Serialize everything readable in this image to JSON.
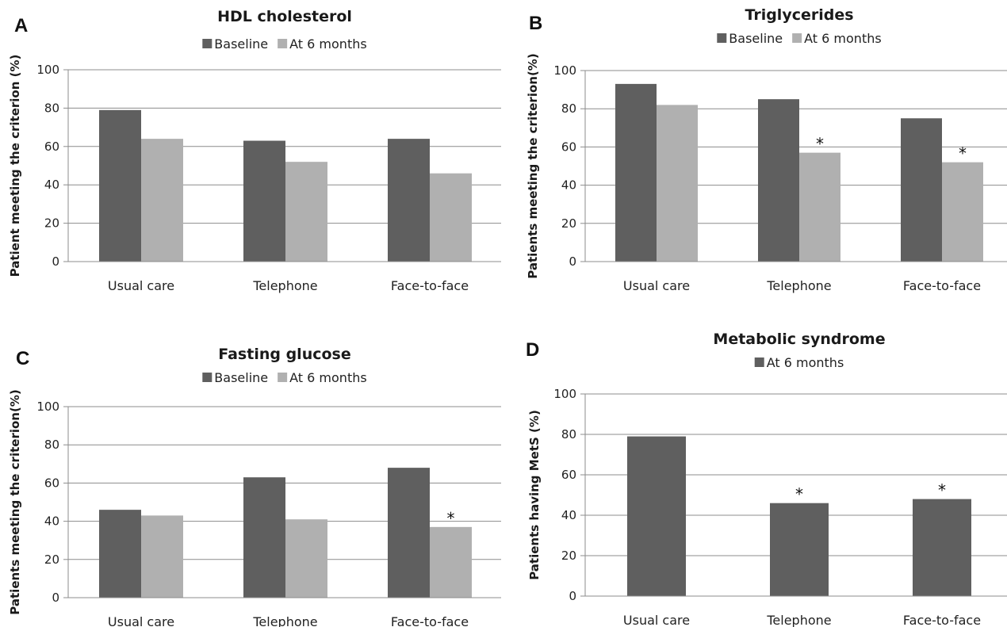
{
  "chart_data": [
    {
      "panel": "A",
      "type": "bar",
      "title": "HDL cholesterol",
      "ylabel": "Patient meeting the criterion (%)",
      "xlabel": "",
      "ylim": [
        0,
        100
      ],
      "yticks": [
        0,
        20,
        40,
        60,
        80,
        100
      ],
      "grid": true,
      "legend_position": "top-center",
      "categories": [
        "Usual care",
        "Telephone",
        "Face-to-face"
      ],
      "series": [
        {
          "name": "Baseline",
          "color": "#5f5f5f",
          "values": [
            79,
            63,
            64
          ]
        },
        {
          "name": "At 6 months",
          "color": "#b0b0b0",
          "values": [
            64,
            52,
            46
          ]
        }
      ],
      "annotations": []
    },
    {
      "panel": "B",
      "type": "bar",
      "title": "Triglycerides",
      "ylabel": "Patients meeting the criterion(%)",
      "xlabel": "",
      "ylim": [
        0,
        100
      ],
      "yticks": [
        0,
        20,
        40,
        60,
        80,
        100
      ],
      "grid": true,
      "legend_position": "top-center",
      "categories": [
        "Usual care",
        "Telephone",
        "Face-to-face"
      ],
      "series": [
        {
          "name": "Baseline",
          "color": "#5f5f5f",
          "values": [
            93,
            85,
            75
          ]
        },
        {
          "name": "At 6 months",
          "color": "#b0b0b0",
          "values": [
            82,
            57,
            52
          ]
        }
      ],
      "annotations": [
        {
          "series": 1,
          "category": 1,
          "text": "*"
        },
        {
          "series": 1,
          "category": 2,
          "text": "*"
        }
      ]
    },
    {
      "panel": "C",
      "type": "bar",
      "title": "Fasting glucose",
      "ylabel": "Patients meeting the criterion(%)",
      "xlabel": "",
      "ylim": [
        0,
        100
      ],
      "yticks": [
        0,
        20,
        40,
        60,
        80,
        100
      ],
      "grid": true,
      "legend_position": "top-center",
      "categories": [
        "Usual care",
        "Telephone",
        "Face-to-face"
      ],
      "series": [
        {
          "name": "Baseline",
          "color": "#5f5f5f",
          "values": [
            46,
            63,
            68
          ]
        },
        {
          "name": "At 6 months",
          "color": "#b0b0b0",
          "values": [
            43,
            41,
            37
          ]
        }
      ],
      "annotations": [
        {
          "series": 1,
          "category": 2,
          "text": "*"
        }
      ]
    },
    {
      "panel": "D",
      "type": "bar",
      "title": "Metabolic syndrome",
      "ylabel": "Patients having MetS (%)",
      "xlabel": "",
      "ylim": [
        0,
        100
      ],
      "yticks": [
        0,
        20,
        40,
        60,
        80,
        100
      ],
      "grid": true,
      "legend_position": "top-center",
      "categories": [
        "Usual care",
        "Telephone",
        "Face-to-face"
      ],
      "series": [
        {
          "name": "At 6 months",
          "color": "#5f5f5f",
          "values": [
            79,
            46,
            48
          ]
        }
      ],
      "annotations": [
        {
          "series": 0,
          "category": 1,
          "text": "*"
        },
        {
          "series": 0,
          "category": 2,
          "text": "*"
        }
      ]
    }
  ]
}
